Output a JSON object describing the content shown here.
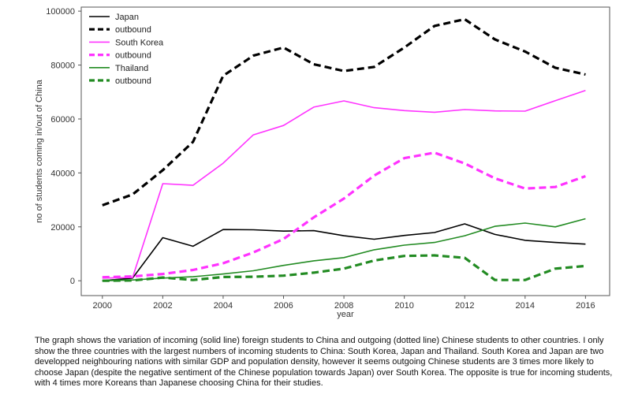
{
  "chart_data": {
    "type": "line",
    "title": "",
    "xlabel": "year",
    "ylabel": "no of students coming in/out of China",
    "xlim": [
      1999.3,
      2016.8
    ],
    "ylim": [
      -5500,
      101500
    ],
    "xticks": [
      2000,
      2002,
      2004,
      2006,
      2008,
      2010,
      2012,
      2014,
      2016
    ],
    "xtick_labels": [
      "2000",
      "2002",
      "2004",
      "2006",
      "2008",
      "2010",
      "2012",
      "2014",
      "2016"
    ],
    "yticks": [
      0,
      20000,
      40000,
      60000,
      80000,
      100000
    ],
    "ytick_labels": [
      "0",
      "20000",
      "40000",
      "60000",
      "80000",
      "100000"
    ],
    "grid": false,
    "legend_position": "top-left",
    "x": [
      2000,
      2001,
      2002,
      2003,
      2004,
      2005,
      2006,
      2007,
      2008,
      2009,
      2010,
      2011,
      2012,
      2013,
      2014,
      2015,
      2016
    ],
    "series": [
      {
        "name": "Japan",
        "color": "#000000",
        "dashed": false,
        "values": [
          0,
          1000,
          16000,
          12800,
          19000,
          18900,
          18400,
          18600,
          16700,
          15400,
          16800,
          17900,
          21100,
          17200,
          15000,
          14200,
          13600
        ]
      },
      {
        "name": "outbound",
        "color": "#000000",
        "dashed": true,
        "values": [
          28000,
          32000,
          41000,
          51500,
          76000,
          83500,
          86500,
          80300,
          77800,
          79300,
          86500,
          94500,
          97000,
          89500,
          85000,
          79000,
          76500
        ]
      },
      {
        "name": "South Korea",
        "color": "#ff33ff",
        "dashed": false,
        "values": [
          1000,
          1200,
          36000,
          35400,
          43600,
          54100,
          57600,
          64400,
          66700,
          64200,
          63100,
          62500,
          63500,
          63000,
          62900,
          66800,
          70600
        ]
      },
      {
        "name": "outbound",
        "color": "#ff33ff",
        "dashed": true,
        "values": [
          1300,
          1600,
          2500,
          4000,
          6500,
          10500,
          15500,
          23500,
          30500,
          39000,
          45500,
          47500,
          43500,
          38000,
          34200,
          34800,
          38800
        ]
      },
      {
        "name": "Thailand",
        "color": "#228b22",
        "dashed": false,
        "values": [
          0,
          300,
          1000,
          1500,
          2500,
          3700,
          5700,
          7400,
          8600,
          11500,
          13200,
          14200,
          16700,
          20200,
          21400,
          20000,
          23000
        ]
      },
      {
        "name": "outbound",
        "color": "#228b22",
        "dashed": true,
        "values": [
          0,
          100,
          1200,
          300,
          1400,
          1500,
          1900,
          3000,
          4500,
          7500,
          9200,
          9400,
          8500,
          300,
          300,
          4500,
          5500
        ]
      }
    ]
  },
  "caption": "The graph shows the variation of incoming (solid line) foreign students to China and outgoing (dotted line) Chinese students to other countries. I only show the three countries with the largest numbers of incoming students to China: South Korea, Japan and Thailand. South Korea and Japan are two developped neighbouring nations with similar GDP and population density, however it seems outgoing Chinese students are 3 times more likely to choose Japan (despite the negative sentiment of the Chinese population towards Japan) over South Korea. The opposite is true for incoming students, with 4 times more Koreans than Japanese choosing China for their studies."
}
